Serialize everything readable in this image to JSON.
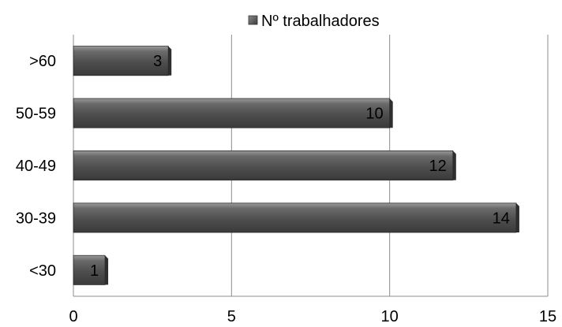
{
  "chart_data": {
    "type": "bar",
    "orientation": "horizontal",
    "categories": [
      "<30",
      "30-39",
      "40-49",
      "50-59",
      ">60"
    ],
    "series": [
      {
        "name": "Nº trabalhadores",
        "values": [
          1,
          14,
          12,
          10,
          3
        ]
      }
    ],
    "data_labels": [
      "1",
      "14",
      "12",
      "10",
      "3"
    ],
    "xlim": [
      0,
      15
    ],
    "x_ticks": [
      0,
      5,
      10,
      15
    ],
    "x_tick_labels": [
      "0",
      "5",
      "10",
      "15"
    ],
    "grid": true,
    "legend_position": "top",
    "bar_color": "#555555"
  }
}
